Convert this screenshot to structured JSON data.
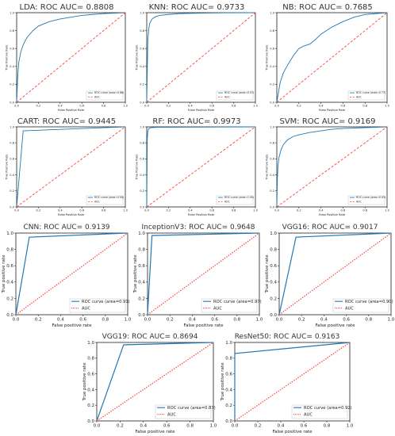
{
  "chart_data": [
    {
      "type": "line",
      "title": "LDA: ROC  AUC= 0.8808",
      "xlabel": "False Positive Rate",
      "ylabel": "True Positive Rate",
      "xlim": [
        0,
        1
      ],
      "ylim": [
        0,
        1
      ],
      "xticks": [
        "0.0",
        "0.2",
        "0.4",
        "0.6",
        "0.8",
        "1.0"
      ],
      "yticks": [
        "0.0",
        "0.2",
        "0.4",
        "0.6",
        "0.8",
        "1.0"
      ],
      "legend_position": "lower right",
      "series": [
        {
          "name": "ROC curve (area=0.88)",
          "color": "#1f77b4",
          "style": "solid",
          "x": [
            0,
            0.01,
            0.02,
            0.04,
            0.06,
            0.08,
            0.1,
            0.15,
            0.2,
            0.3,
            0.4,
            0.5,
            0.6,
            0.7,
            0.8,
            0.9,
            1.0
          ],
          "y": [
            0,
            0.3,
            0.45,
            0.57,
            0.64,
            0.69,
            0.73,
            0.8,
            0.85,
            0.9,
            0.93,
            0.95,
            0.97,
            0.98,
            0.99,
            0.995,
            1.0
          ]
        },
        {
          "name": "AUC",
          "color": "#ff4040",
          "style": "dashed",
          "x": [
            0,
            1
          ],
          "y": [
            0,
            1
          ]
        }
      ]
    },
    {
      "type": "line",
      "title": "KNN: ROC  AUC= 0.9733",
      "xlabel": "False Positive Rate",
      "ylabel": "True Positive Rate",
      "xlim": [
        0,
        1
      ],
      "ylim": [
        0,
        1
      ],
      "xticks": [
        "0.0",
        "0.2",
        "0.4",
        "0.6",
        "0.8",
        "1.0"
      ],
      "yticks": [
        "0.0",
        "0.2",
        "0.4",
        "0.6",
        "0.8",
        "1.0"
      ],
      "legend_position": "lower right",
      "series": [
        {
          "name": "ROC curve (area=0.97)",
          "color": "#1f77b4",
          "style": "solid",
          "x": [
            0,
            0.01,
            0.02,
            0.03,
            0.05,
            0.08,
            0.12,
            0.2,
            0.3,
            0.5,
            0.7,
            1.0
          ],
          "y": [
            0,
            0.7,
            0.83,
            0.89,
            0.93,
            0.955,
            0.97,
            0.98,
            0.99,
            0.995,
            0.998,
            1.0
          ]
        },
        {
          "name": "AUC",
          "color": "#ff4040",
          "style": "dashed",
          "x": [
            0,
            1
          ],
          "y": [
            0,
            1
          ]
        }
      ]
    },
    {
      "type": "line",
      "title": "NB: ROC  AUC= 0.7685",
      "xlabel": "False Positive Rate",
      "ylabel": "True Positive Rate",
      "xlim": [
        0,
        1
      ],
      "ylim": [
        0,
        1
      ],
      "xticks": [
        "0.0",
        "0.2",
        "0.4",
        "0.6",
        "0.8",
        "1.0"
      ],
      "yticks": [
        "0.0",
        "0.2",
        "0.4",
        "0.6",
        "0.8",
        "1.0"
      ],
      "legend_position": "lower right",
      "series": [
        {
          "name": "ROC curve (area=0.77)",
          "color": "#1f77b4",
          "style": "solid",
          "x": [
            0,
            0.03,
            0.06,
            0.1,
            0.15,
            0.2,
            0.25,
            0.3,
            0.35,
            0.4,
            0.5,
            0.6,
            0.7,
            0.8,
            0.9,
            1.0
          ],
          "y": [
            0,
            0.22,
            0.33,
            0.42,
            0.52,
            0.6,
            0.63,
            0.65,
            0.7,
            0.76,
            0.84,
            0.9,
            0.95,
            0.98,
            0.99,
            1.0
          ]
        },
        {
          "name": "AUC",
          "color": "#ff4040",
          "style": "dashed",
          "x": [
            0,
            1
          ],
          "y": [
            0,
            1
          ]
        }
      ]
    },
    {
      "type": "line",
      "title": "CART: ROC  AUC= 0.9445",
      "xlabel": "False Positive Rate",
      "ylabel": "True Positive Rate",
      "xlim": [
        0,
        1
      ],
      "ylim": [
        0,
        1
      ],
      "xticks": [
        "0.0",
        "0.2",
        "0.4",
        "0.6",
        "0.8",
        "1.0"
      ],
      "yticks": [
        "0.0",
        "0.2",
        "0.4",
        "0.6",
        "0.8",
        "1.0"
      ],
      "legend_position": "lower right",
      "series": [
        {
          "name": "ROC curve (area=0.94)",
          "color": "#1f77b4",
          "style": "solid",
          "x": [
            0,
            0.06,
            1.0
          ],
          "y": [
            0,
            0.95,
            1.0
          ]
        },
        {
          "name": "AUC",
          "color": "#ff4040",
          "style": "dashed",
          "x": [
            0,
            1
          ],
          "y": [
            0,
            1
          ]
        }
      ]
    },
    {
      "type": "line",
      "title": "RF: ROC  AUC= 0.9973",
      "xlabel": "False Positive Rate",
      "ylabel": "True Positive Rate",
      "xlim": [
        0,
        1
      ],
      "ylim": [
        0,
        1
      ],
      "xticks": [
        "0.0",
        "0.2",
        "0.4",
        "0.6",
        "0.8",
        "1.0"
      ],
      "yticks": [
        "0.0",
        "0.2",
        "0.4",
        "0.6",
        "0.8",
        "1.0"
      ],
      "legend_position": "lower right",
      "series": [
        {
          "name": "ROC curve (area=1.00)",
          "color": "#1f77b4",
          "style": "solid",
          "x": [
            0,
            0.005,
            0.01,
            0.02,
            0.04,
            0.1,
            1.0
          ],
          "y": [
            0,
            0.85,
            0.95,
            0.98,
            0.99,
            0.995,
            1.0
          ]
        },
        {
          "name": "AUC",
          "color": "#ff4040",
          "style": "dashed",
          "x": [
            0,
            1
          ],
          "y": [
            0,
            1
          ]
        }
      ]
    },
    {
      "type": "line",
      "title": "SVM: ROC  AUC= 0.9169",
      "xlabel": "False Positive Rate",
      "ylabel": "True Positive Rate",
      "xlim": [
        0,
        1
      ],
      "ylim": [
        0,
        1
      ],
      "xticks": [
        "0.0",
        "0.2",
        "0.4",
        "0.6",
        "0.8",
        "1.0"
      ],
      "yticks": [
        "0.0",
        "0.2",
        "0.4",
        "0.6",
        "0.8",
        "1.0"
      ],
      "legend_position": "lower right",
      "series": [
        {
          "name": "ROC curve (area=0.92)",
          "color": "#1f77b4",
          "style": "solid",
          "x": [
            0,
            0.005,
            0.01,
            0.02,
            0.04,
            0.06,
            0.1,
            0.15,
            0.2,
            0.3,
            0.4,
            0.5,
            0.6,
            0.8,
            1.0
          ],
          "y": [
            0,
            0.35,
            0.5,
            0.62,
            0.72,
            0.78,
            0.84,
            0.88,
            0.9,
            0.93,
            0.95,
            0.97,
            0.98,
            0.99,
            1.0
          ]
        },
        {
          "name": "AUC",
          "color": "#ff4040",
          "style": "dashed",
          "x": [
            0,
            1
          ],
          "y": [
            0,
            1
          ]
        }
      ]
    },
    {
      "type": "line",
      "title": "CNN: ROC  AUC= 0.9139",
      "xlabel": "False positive rate",
      "ylabel": "True positive rate",
      "xlim": [
        0,
        1
      ],
      "ylim": [
        0,
        1
      ],
      "xticks": [
        "0.0",
        "0.2",
        "0.4",
        "0.6",
        "0.8",
        "1.0"
      ],
      "yticks": [
        "0.0",
        "0.2",
        "0.4",
        "0.6",
        "0.8",
        "1.0"
      ],
      "legend_position": "lower right",
      "series": [
        {
          "name": "ROC curve (area=0.91)",
          "color": "#1f77b4",
          "style": "solid",
          "x": [
            0,
            0.12,
            1.0
          ],
          "y": [
            0,
            0.95,
            1.0
          ]
        },
        {
          "name": "AUC",
          "color": "#ff4040",
          "style": "dotted",
          "x": [
            0,
            1
          ],
          "y": [
            0,
            1
          ]
        }
      ]
    },
    {
      "type": "line",
      "title": "InceptionV3: ROC  AUC= 0.9648",
      "xlabel": "False positive rate",
      "ylabel": "True positive rate",
      "xlim": [
        0,
        1
      ],
      "ylim": [
        0,
        1
      ],
      "xticks": [
        "0.0",
        "0.2",
        "0.4",
        "0.6",
        "0.8",
        "1.0"
      ],
      "yticks": [
        "0.0",
        "0.2",
        "0.4",
        "0.6",
        "0.8",
        "1.0"
      ],
      "legend_position": "lower right",
      "series": [
        {
          "name": "ROC curve (area=0.97)",
          "color": "#1f77b4",
          "style": "solid",
          "x": [
            0,
            0.04,
            1.0
          ],
          "y": [
            0,
            0.97,
            1.0
          ]
        },
        {
          "name": "AUC",
          "color": "#ff4040",
          "style": "dotted",
          "x": [
            0,
            1
          ],
          "y": [
            0,
            1
          ]
        }
      ]
    },
    {
      "type": "line",
      "title": "VGG16: ROC  AUC= 0.9017",
      "xlabel": "False positive rate",
      "ylabel": "True positive rate",
      "xlim": [
        0,
        1
      ],
      "ylim": [
        0,
        1
      ],
      "xticks": [
        "0.0",
        "0.2",
        "0.4",
        "0.6",
        "0.8",
        "1.0"
      ],
      "yticks": [
        "0.0",
        "0.2",
        "0.4",
        "0.6",
        "0.8",
        "1.0"
      ],
      "legend_position": "lower right",
      "series": [
        {
          "name": "ROC curve (area=0.90)",
          "color": "#1f77b4",
          "style": "solid",
          "x": [
            0,
            0.15,
            1.0
          ],
          "y": [
            0,
            0.95,
            1.0
          ]
        },
        {
          "name": "AUC",
          "color": "#ff4040",
          "style": "dotted",
          "x": [
            0,
            1
          ],
          "y": [
            0,
            1
          ]
        }
      ]
    },
    {
      "type": "line",
      "title": "VGG19: ROC  AUC= 0.8694",
      "xlabel": "False positive rate",
      "ylabel": "True positive rate",
      "xlim": [
        0,
        1
      ],
      "ylim": [
        0,
        1
      ],
      "xticks": [
        "0.0",
        "0.2",
        "0.4",
        "0.6",
        "0.8",
        "1.0"
      ],
      "yticks": [
        "0.0",
        "0.2",
        "0.4",
        "0.6",
        "0.8",
        "1.0"
      ],
      "legend_position": "lower right",
      "series": [
        {
          "name": "ROC curve (area=0.87)",
          "color": "#1f77b4",
          "style": "solid",
          "x": [
            0,
            0.23,
            1.0
          ],
          "y": [
            0,
            0.97,
            1.0
          ]
        },
        {
          "name": "AUC",
          "color": "#ff4040",
          "style": "dotted",
          "x": [
            0,
            1
          ],
          "y": [
            0,
            1
          ]
        }
      ]
    },
    {
      "type": "line",
      "title": "ResNet50: ROC  AUC= 0.9163",
      "xlabel": "False positive rate",
      "ylabel": "True positive rate",
      "xlim": [
        0,
        1
      ],
      "ylim": [
        0,
        1
      ],
      "xticks": [
        "0.0",
        "0.2",
        "0.4",
        "0.6",
        "0.8",
        "1.0"
      ],
      "yticks": [
        "0.0",
        "0.2",
        "0.4",
        "0.6",
        "0.8",
        "1.0"
      ],
      "legend_position": "lower right",
      "series": [
        {
          "name": "ROC curve (area=0.92)",
          "color": "#1f77b4",
          "style": "solid",
          "x": [
            0,
            0.0,
            1.0
          ],
          "y": [
            0,
            0.86,
            1.0
          ]
        },
        {
          "name": "AUC",
          "color": "#ff4040",
          "style": "dotted",
          "x": [
            0,
            1
          ],
          "y": [
            0,
            1
          ]
        }
      ]
    }
  ]
}
